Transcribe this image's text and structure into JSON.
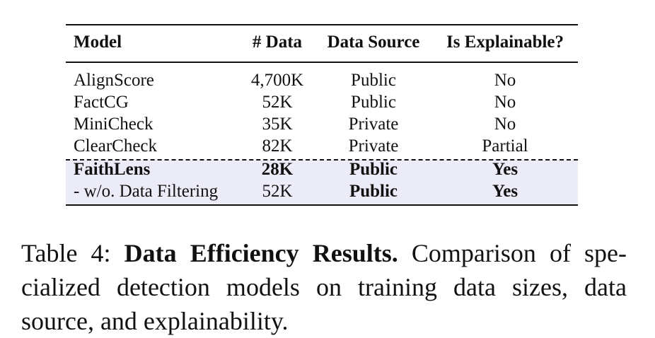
{
  "table": {
    "header": [
      "Model",
      "# Data",
      "Data Source",
      "Is Explainable?"
    ],
    "rows": [
      [
        "AlignScore",
        "4,700K",
        "Public",
        "No"
      ],
      [
        "FactCG",
        "52K",
        "Public",
        "No"
      ],
      [
        "MiniCheck",
        "35K",
        "Private",
        "No"
      ],
      [
        "ClearCheck",
        "82K",
        "Private",
        "Partial"
      ],
      [
        "FaithLens",
        "28K",
        "Public",
        "Yes"
      ],
      [
        "- w/o. Data Filtering",
        "52K",
        "Public",
        "Yes"
      ]
    ]
  },
  "caption": {
    "label": "Table 4:",
    "title": "Data Efficiency Results.",
    "lines": [
      "Comparison of spe-",
      "cialized detection models on training data sizes, data",
      "source, and explainability."
    ]
  }
}
